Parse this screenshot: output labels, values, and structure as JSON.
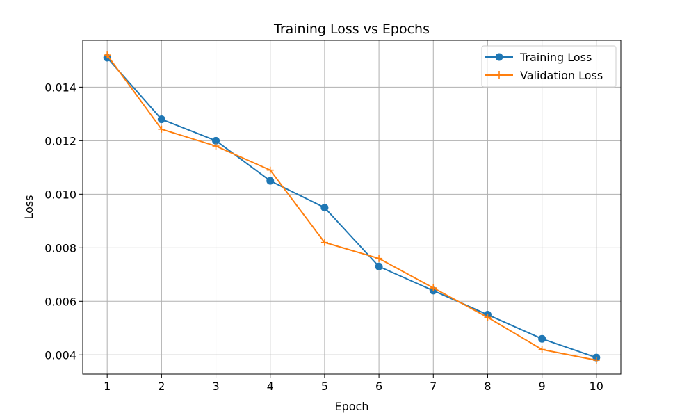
{
  "chart_data": {
    "type": "line",
    "title": "Training Loss vs Epochs",
    "xlabel": "Epoch",
    "ylabel": "Loss",
    "x": [
      1,
      2,
      3,
      4,
      5,
      6,
      7,
      8,
      9,
      10
    ],
    "xticks": [
      "1",
      "2",
      "3",
      "4",
      "5",
      "6",
      "7",
      "8",
      "9",
      "10"
    ],
    "yticks": [
      0.004,
      0.006,
      0.008,
      0.01,
      0.012,
      0.014
    ],
    "ytick_labels": [
      "0.004",
      "0.006",
      "0.008",
      "0.010",
      "0.012",
      "0.014"
    ],
    "xlim": [
      0.55,
      10.45
    ],
    "ylim": [
      0.00328,
      0.01575
    ],
    "grid": true,
    "legend_position": "top-right",
    "series": [
      {
        "name": "Training Loss",
        "color": "#1f77b4",
        "marker": "circle",
        "values": [
          0.0151,
          0.0128,
          0.012,
          0.0105,
          0.0095,
          0.0073,
          0.0064,
          0.0055,
          0.0046,
          0.0039
        ]
      },
      {
        "name": "Validation Loss",
        "color": "#ff7f0e",
        "marker": "plus",
        "values": [
          0.0152,
          0.01243,
          0.0118,
          0.0109,
          0.0082,
          0.0076,
          0.0065,
          0.0054,
          0.0042,
          0.0038
        ]
      }
    ]
  }
}
